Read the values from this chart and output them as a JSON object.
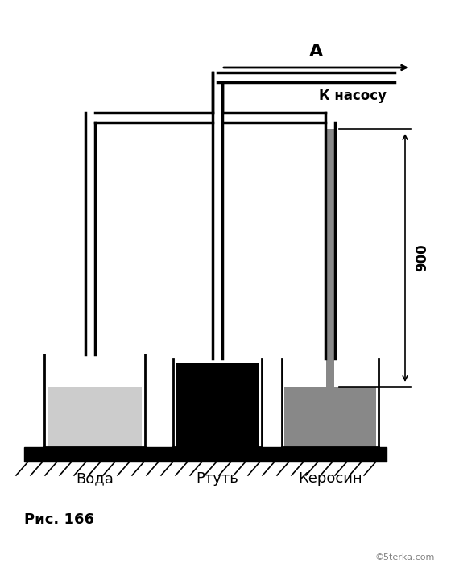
{
  "bg_color": "#ffffff",
  "ground_color": "#000000",
  "water_color": "#cccccc",
  "mercury_color": "#000000",
  "kerosene_color": "#999999",
  "tube_color": "#000000",
  "tube_lw": 2.5,
  "vessel_lw": 2.0,
  "fig_width": 5.6,
  "fig_height": 7.1,
  "label_water": "Вода",
  "label_mercury": "Ртуть",
  "label_kerosene": "Керосин",
  "label_A": "А",
  "label_pump": "К насосу",
  "label_900": "900",
  "label_fig": "Рис. 166",
  "label_copyright": "©5terka.com"
}
